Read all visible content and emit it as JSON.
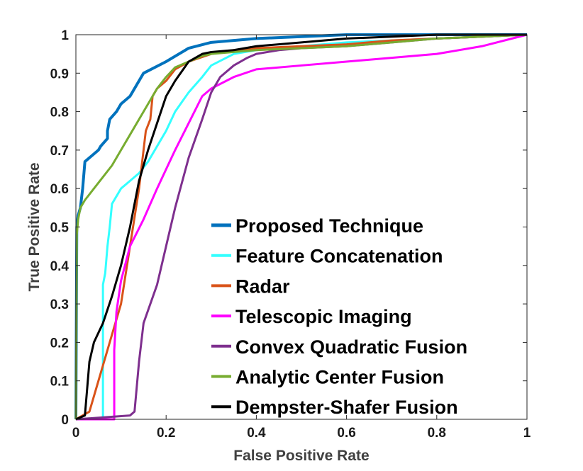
{
  "chart_data": {
    "type": "line",
    "xlabel": "False Positive Rate",
    "ylabel": "True Positive Rate",
    "xlim": [
      0,
      1
    ],
    "ylim": [
      0,
      1
    ],
    "xticks": [
      "0",
      "0.2",
      "0.4",
      "0.6",
      "0.8",
      "1"
    ],
    "yticks": [
      "0",
      "0.1",
      "0.2",
      "0.3",
      "0.4",
      "0.5",
      "0.6",
      "0.7",
      "0.8",
      "0.9",
      "1"
    ],
    "grid": false,
    "legend_position": "bottom-right",
    "series": [
      {
        "name": "Proposed Technique",
        "color": "#0072BD",
        "x": [
          0,
          0.002,
          0.005,
          0.01,
          0.015,
          0.02,
          0.03,
          0.05,
          0.055,
          0.07,
          0.07,
          0.075,
          0.09,
          0.1,
          0.12,
          0.13,
          0.15,
          0.2,
          0.25,
          0.3,
          0.4,
          0.5,
          0.6,
          0.7,
          0.8,
          0.9,
          1
        ],
        "y": [
          0,
          0.5,
          0.53,
          0.55,
          0.6,
          0.67,
          0.68,
          0.7,
          0.71,
          0.73,
          0.75,
          0.78,
          0.8,
          0.82,
          0.84,
          0.86,
          0.9,
          0.93,
          0.965,
          0.98,
          0.99,
          0.995,
          1,
          1,
          1,
          1,
          1
        ]
      },
      {
        "name": "Feature Concatenation",
        "color": "#33FFFF",
        "x": [
          0,
          0.06,
          0.06,
          0.065,
          0.07,
          0.075,
          0.08,
          0.09,
          0.1,
          0.12,
          0.14,
          0.16,
          0.18,
          0.2,
          0.22,
          0.25,
          0.28,
          0.3,
          0.35,
          0.4,
          0.5,
          0.6,
          0.7,
          0.8,
          0.9,
          1
        ],
        "y": [
          0,
          0,
          0.35,
          0.38,
          0.45,
          0.5,
          0.56,
          0.58,
          0.6,
          0.62,
          0.64,
          0.67,
          0.71,
          0.75,
          0.8,
          0.85,
          0.89,
          0.92,
          0.95,
          0.96,
          0.97,
          0.98,
          0.985,
          0.99,
          0.995,
          1
        ]
      },
      {
        "name": "Radar",
        "color": "#D95319",
        "x": [
          0,
          0.03,
          0.05,
          0.07,
          0.1,
          0.12,
          0.14,
          0.155,
          0.165,
          0.17,
          0.18,
          0.2,
          0.22,
          0.25,
          0.3,
          0.35,
          0.4,
          0.5,
          0.6,
          0.7,
          0.8,
          0.9,
          1
        ],
        "y": [
          0,
          0.02,
          0.1,
          0.18,
          0.3,
          0.45,
          0.6,
          0.75,
          0.78,
          0.84,
          0.86,
          0.88,
          0.91,
          0.93,
          0.95,
          0.96,
          0.965,
          0.97,
          0.975,
          0.985,
          0.99,
          0.995,
          1
        ]
      },
      {
        "name": "Telescopic Imaging",
        "color": "#FF00FF",
        "x": [
          0,
          0.085,
          0.085,
          0.09,
          0.1,
          0.12,
          0.15,
          0.18,
          0.2,
          0.22,
          0.25,
          0.28,
          0.3,
          0.35,
          0.4,
          0.5,
          0.6,
          0.7,
          0.8,
          0.9,
          1
        ],
        "y": [
          0,
          0,
          0.18,
          0.28,
          0.36,
          0.45,
          0.52,
          0.6,
          0.65,
          0.7,
          0.77,
          0.84,
          0.86,
          0.89,
          0.91,
          0.92,
          0.93,
          0.94,
          0.95,
          0.97,
          1
        ]
      },
      {
        "name": "Convex Quadratic Fusion",
        "color": "#7E2F8E",
        "x": [
          0,
          0.12,
          0.13,
          0.14,
          0.15,
          0.18,
          0.2,
          0.22,
          0.25,
          0.28,
          0.3,
          0.32,
          0.35,
          0.38,
          0.4,
          0.45,
          0.5,
          0.6,
          0.7,
          0.8,
          0.9,
          1
        ],
        "y": [
          0,
          0.01,
          0.02,
          0.15,
          0.25,
          0.35,
          0.45,
          0.55,
          0.68,
          0.78,
          0.85,
          0.89,
          0.92,
          0.94,
          0.95,
          0.96,
          0.965,
          0.97,
          0.98,
          0.99,
          0.995,
          1
        ]
      },
      {
        "name": "Analytic Center Fusion",
        "color": "#77AC30",
        "x": [
          0,
          0.002,
          0.005,
          0.01,
          0.02,
          0.04,
          0.06,
          0.08,
          0.1,
          0.12,
          0.15,
          0.18,
          0.2,
          0.22,
          0.25,
          0.28,
          0.3,
          0.35,
          0.4,
          0.5,
          0.6,
          0.7,
          0.8,
          0.9,
          1
        ],
        "y": [
          0,
          0.48,
          0.52,
          0.55,
          0.57,
          0.6,
          0.63,
          0.66,
          0.7,
          0.74,
          0.8,
          0.86,
          0.89,
          0.915,
          0.93,
          0.945,
          0.95,
          0.955,
          0.96,
          0.965,
          0.97,
          0.98,
          0.99,
          0.995,
          1
        ]
      },
      {
        "name": "Dempster-Shafer Fusion",
        "color": "#000000",
        "x": [
          0,
          0.02,
          0.03,
          0.04,
          0.06,
          0.08,
          0.1,
          0.12,
          0.14,
          0.16,
          0.18,
          0.2,
          0.22,
          0.25,
          0.28,
          0.3,
          0.35,
          0.4,
          0.5,
          0.6,
          0.7,
          0.8,
          0.9,
          1
        ],
        "y": [
          0,
          0.01,
          0.15,
          0.2,
          0.25,
          0.32,
          0.4,
          0.5,
          0.62,
          0.7,
          0.77,
          0.84,
          0.88,
          0.93,
          0.95,
          0.955,
          0.96,
          0.97,
          0.98,
          0.99,
          0.995,
          1,
          1,
          1
        ]
      }
    ]
  }
}
